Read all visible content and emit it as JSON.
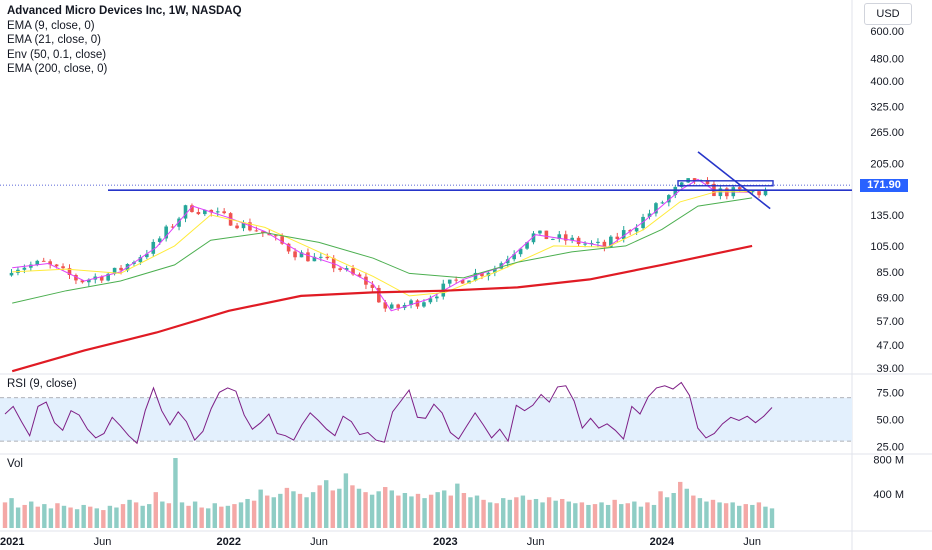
{
  "legend": {
    "title": "Advanced Micro Devices Inc, 1W, NASDAQ",
    "lines": [
      "EMA (9, close, 0)",
      "EMA (21, close, 0)",
      "Env (50, 0.1, close)",
      "EMA (200, close, 0)"
    ]
  },
  "currency_button": "USD",
  "last_price_label": "171.90",
  "rsi_label": "RSI (9, close)",
  "vol_label": "Vol",
  "colors": {
    "up": "#26a69a",
    "down": "#ef5350",
    "ema9": "#e040fb",
    "ema21": "#ffeb3b",
    "env": "#4caf50",
    "ema200": "#e01b24",
    "trendline": "#2635c9",
    "rsi": "#7e1f86",
    "rsi_band": "#e3f0fd"
  },
  "chart_data": [
    {
      "type": "candlestick",
      "title": "Advanced Micro Devices Inc, 1W, NASDAQ",
      "scale": "log",
      "x_ticks": [
        "2021",
        "Jun",
        "2022",
        "Jun",
        "2023",
        "Jun",
        "2024",
        "Jun"
      ],
      "y_ticks": [
        39.0,
        47.0,
        57.0,
        69.0,
        85.0,
        105.0,
        135.0,
        165.0,
        205.0,
        265.0,
        325.0,
        400.0,
        480.0,
        600.0
      ],
      "last_price": 171.9,
      "series": [
        {
          "name": "EMA (9, close, 0)",
          "points": [
            [
              "2021-01",
              88
            ],
            [
              "2021-03",
              91
            ],
            [
              "2021-05",
              79
            ],
            [
              "2021-07",
              85
            ],
            [
              "2021-09",
              104
            ],
            [
              "2021-11",
              145
            ],
            [
              "2022-01",
              132
            ],
            [
              "2022-03",
              118
            ],
            [
              "2022-05",
              99
            ],
            [
              "2022-07",
              90
            ],
            [
              "2022-09",
              77
            ],
            [
              "2022-10",
              62
            ],
            [
              "2022-12",
              68
            ],
            [
              "2023-02",
              80
            ],
            [
              "2023-04",
              88
            ],
            [
              "2023-06",
              115
            ],
            [
              "2023-08",
              110
            ],
            [
              "2023-10",
              104
            ],
            [
              "2023-12",
              128
            ],
            [
              "2024-02",
              165
            ],
            [
              "2024-03",
              180
            ],
            [
              "2024-04",
              163
            ],
            [
              "2024-06",
              162
            ]
          ]
        },
        {
          "name": "EMA (21, close, 0)",
          "points": [
            [
              "2021-01",
              85
            ],
            [
              "2021-04",
              87
            ],
            [
              "2021-07",
              84
            ],
            [
              "2021-10",
              105
            ],
            [
              "2021-12",
              135
            ],
            [
              "2022-03",
              122
            ],
            [
              "2022-06",
              100
            ],
            [
              "2022-09",
              82
            ],
            [
              "2022-11",
              70
            ],
            [
              "2023-01",
              72
            ],
            [
              "2023-04",
              86
            ],
            [
              "2023-07",
              105
            ],
            [
              "2023-10",
              104
            ],
            [
              "2023-12",
              120
            ],
            [
              "2024-02",
              150
            ],
            [
              "2024-04",
              163
            ],
            [
              "2024-06",
              163
            ]
          ]
        },
        {
          "name": "Env (50, 0.1, close)",
          "points": [
            [
              "2021-01",
              66
            ],
            [
              "2021-04",
              73
            ],
            [
              "2021-07",
              79
            ],
            [
              "2021-10",
              90
            ],
            [
              "2021-12",
              110
            ],
            [
              "2022-03",
              117
            ],
            [
              "2022-06",
              108
            ],
            [
              "2022-09",
              95
            ],
            [
              "2022-11",
              84
            ],
            [
              "2023-02",
              81
            ],
            [
              "2023-05",
              92
            ],
            [
              "2023-08",
              100
            ],
            [
              "2023-11",
              105
            ],
            [
              "2024-01",
              120
            ],
            [
              "2024-03",
              145
            ],
            [
              "2024-06",
              155
            ]
          ]
        },
        {
          "name": "EMA (200, close, 0)",
          "points": [
            [
              "2021-01",
              38
            ],
            [
              "2021-05",
              45
            ],
            [
              "2021-09",
              52
            ],
            [
              "2022-01",
              62
            ],
            [
              "2022-05",
              70
            ],
            [
              "2022-09",
              72
            ],
            [
              "2023-01",
              73
            ],
            [
              "2023-05",
              75
            ],
            [
              "2023-09",
              80
            ],
            [
              "2024-01",
              90
            ],
            [
              "2024-06",
              105
            ]
          ]
        }
      ],
      "drawings": {
        "horizontal_level": 165,
        "resistance_box": [
          171,
          178
        ],
        "trendline": [
          [
            "2024-03",
            225
          ],
          [
            "2024-07",
            142
          ]
        ]
      }
    },
    {
      "type": "line",
      "title": "RSI (9, close)",
      "y_ticks": [
        25.0,
        50.0,
        75.0
      ],
      "bands": [
        30,
        70
      ],
      "series": [
        {
          "name": "RSI (9, close)",
          "values": [
            55,
            62,
            48,
            35,
            62,
            66,
            47,
            40,
            58,
            54,
            41,
            33,
            37,
            52,
            44,
            35,
            28,
            58,
            79,
            58,
            45,
            57,
            48,
            31,
            39,
            60,
            75,
            79,
            76,
            54,
            41,
            47,
            55,
            37,
            35,
            31,
            45,
            56,
            49,
            41,
            35,
            53,
            48,
            36,
            38,
            31,
            29,
            57,
            67,
            77,
            52,
            51,
            64,
            56,
            38,
            32,
            44,
            56,
            45,
            33,
            41,
            30,
            63,
            58,
            63,
            73,
            66,
            80,
            81,
            67,
            42,
            51,
            42,
            46,
            40,
            32,
            62,
            55,
            71,
            79,
            81,
            78,
            84,
            72,
            42,
            33,
            37,
            46,
            52,
            49,
            53,
            47,
            53,
            61
          ]
        }
      ]
    },
    {
      "type": "bar",
      "title": "Vol",
      "y_ticks": [
        "400 M",
        "800 M"
      ],
      "series": [
        {
          "name": "Vol",
          "values": [
            300,
            350,
            240,
            270,
            310,
            250,
            280,
            230,
            290,
            260,
            240,
            220,
            270,
            250,
            230,
            210,
            260,
            240,
            280,
            330,
            300,
            260,
            280,
            420,
            310,
            290,
            820,
            300,
            260,
            310,
            240,
            230,
            290,
            250,
            260,
            280,
            300,
            340,
            320,
            450,
            380,
            360,
            400,
            470,
            430,
            400,
            360,
            420,
            500,
            560,
            440,
            460,
            640,
            500,
            460,
            420,
            390,
            430,
            480,
            440,
            380,
            410,
            370,
            400,
            350,
            390,
            420,
            440,
            380,
            520,
            410,
            360,
            380,
            330,
            300,
            290,
            350,
            330,
            360,
            380,
            330,
            340,
            300,
            360,
            320,
            340,
            310,
            290,
            300,
            270,
            280,
            300,
            270,
            330,
            280,
            290,
            310,
            250,
            300,
            270,
            430,
            360,
            410,
            540,
            460,
            380,
            350,
            310,
            330,
            300,
            290,
            300,
            260,
            280,
            270,
            300,
            250,
            230
          ]
        }
      ]
    }
  ]
}
